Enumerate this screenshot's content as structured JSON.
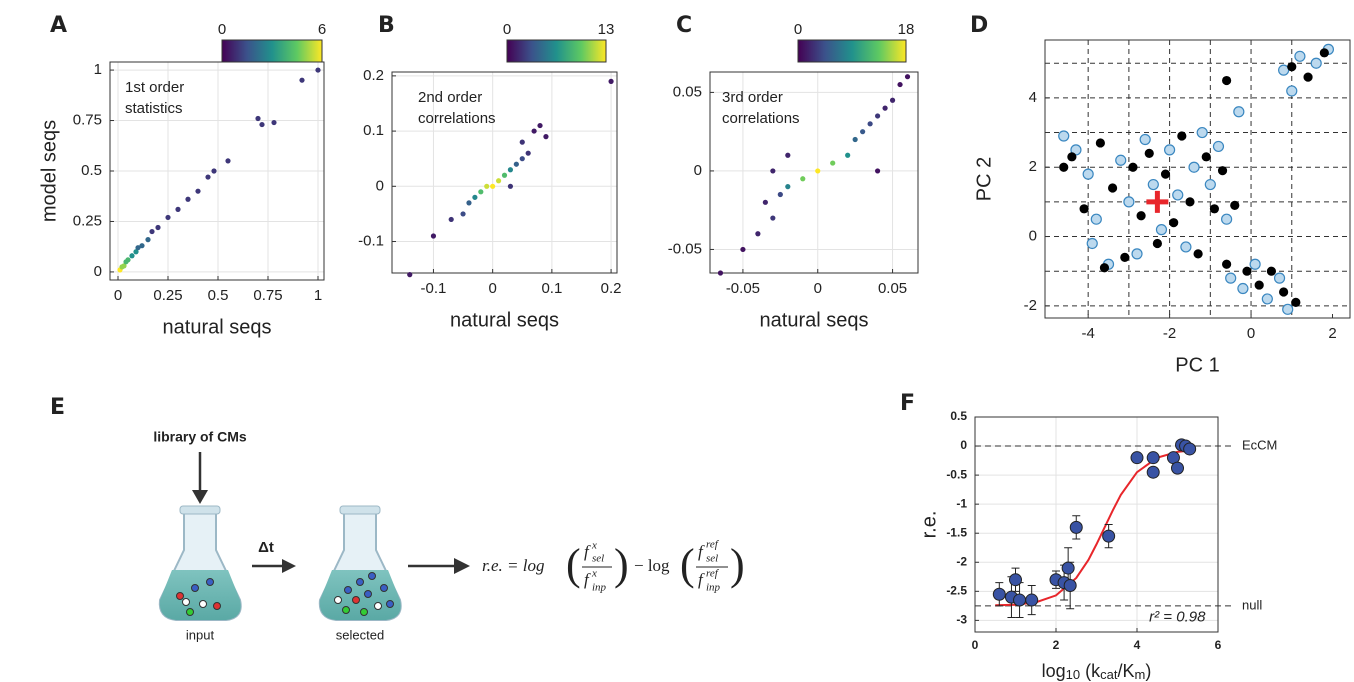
{
  "chart_data": [
    {
      "type": "density",
      "label": "A",
      "annotation": [
        "1st order",
        "statistics"
      ],
      "xlabel": "natural seqs",
      "ylabel": "model seqs",
      "xlim": [
        -0.04,
        1.03
      ],
      "ylim": [
        -0.04,
        1.04
      ],
      "xticks": [
        0,
        0.25,
        0.5,
        0.75,
        1
      ],
      "yticks": [
        0,
        0.25,
        0.5,
        0.75,
        1
      ],
      "grid": true,
      "colorbar": {
        "clim": [
          0,
          6
        ],
        "ticks": [
          0,
          6
        ]
      },
      "x": [
        0.01,
        0.02,
        0.03,
        0.04,
        0.05,
        0.07,
        0.09,
        0.1,
        0.12,
        0.15,
        0.17,
        0.2,
        0.25,
        0.3,
        0.35,
        0.4,
        0.45,
        0.48,
        0.55,
        0.7,
        0.72,
        0.78,
        0.92,
        1.0
      ],
      "y": [
        0.01,
        0.025,
        0.03,
        0.05,
        0.06,
        0.08,
        0.1,
        0.12,
        0.13,
        0.16,
        0.2,
        0.22,
        0.27,
        0.31,
        0.36,
        0.4,
        0.47,
        0.5,
        0.55,
        0.76,
        0.73,
        0.74,
        0.95,
        1.0
      ],
      "c": [
        6,
        5,
        5,
        4,
        4,
        3,
        3,
        2,
        2,
        2,
        1,
        1,
        1,
        1,
        1,
        1,
        1,
        1,
        1,
        1,
        1,
        1,
        1,
        1
      ]
    },
    {
      "type": "density",
      "label": "B",
      "annotation": [
        "2nd order",
        "correlations"
      ],
      "xlabel": "natural seqs",
      "xlim": [
        -0.17,
        0.21
      ],
      "ylim": [
        -0.157,
        0.207
      ],
      "xticks": [
        -0.1,
        0,
        0.1,
        0.2
      ],
      "yticks": [
        -0.1,
        0,
        0.1,
        0.2
      ],
      "grid": true,
      "colorbar": {
        "clim": [
          0,
          13
        ],
        "ticks": [
          0,
          13
        ]
      },
      "x": [
        -0.14,
        -0.1,
        -0.07,
        -0.05,
        -0.04,
        -0.03,
        -0.02,
        -0.01,
        0,
        0.01,
        0.02,
        0.03,
        0.04,
        0.05,
        0.05,
        0.06,
        0.07,
        0.08,
        0.03,
        0.09,
        0.2
      ],
      "y": [
        -0.16,
        -0.09,
        -0.06,
        -0.05,
        -0.03,
        -0.02,
        -0.01,
        0,
        0,
        0.01,
        0.02,
        0.03,
        0.04,
        0.05,
        0.08,
        0.06,
        0.1,
        0.11,
        0,
        0.09,
        0.19
      ],
      "c": [
        1,
        1,
        2,
        3,
        4,
        6,
        9,
        12,
        13,
        12,
        9,
        6,
        4,
        3,
        2,
        2,
        1,
        1,
        2,
        1,
        1
      ]
    },
    {
      "type": "density",
      "label": "C",
      "annotation": [
        "3rd order",
        "correlations"
      ],
      "xlabel": "natural seqs",
      "xlim": [
        -0.072,
        0.067
      ],
      "ylim": [
        -0.065,
        0.063
      ],
      "xticks": [
        -0.05,
        0,
        0.05
      ],
      "yticks": [
        -0.05,
        0,
        0.05
      ],
      "grid": true,
      "colorbar": {
        "clim": [
          0,
          18
        ],
        "ticks": [
          0,
          18
        ]
      },
      "x": [
        -0.065,
        -0.05,
        -0.04,
        -0.035,
        -0.03,
        -0.025,
        -0.02,
        -0.03,
        -0.01,
        0,
        0.01,
        0.02,
        0.025,
        0.03,
        0.035,
        0.04,
        0.045,
        0.05,
        0.055,
        0.06,
        0.04,
        -0.02
      ],
      "y": [
        -0.065,
        -0.05,
        -0.04,
        -0.02,
        -0.03,
        -0.015,
        -0.01,
        0,
        -0.005,
        0,
        0.005,
        0.01,
        0.02,
        0.025,
        0.03,
        0.035,
        0.04,
        0.045,
        0.055,
        0.06,
        0,
        0.01
      ],
      "c": [
        1,
        1,
        2,
        2,
        3,
        4,
        8,
        2,
        14,
        18,
        14,
        9,
        6,
        5,
        4,
        3,
        2,
        2,
        1,
        1,
        1,
        2
      ]
    },
    {
      "type": "scatter",
      "label": "D",
      "xlabel": "PC 1",
      "ylabel": "PC 2",
      "xlim": [
        -5.06,
        2.43
      ],
      "ylim": [
        -2.35,
        5.67
      ],
      "xticks": [
        -4,
        -2,
        0,
        2
      ],
      "yticks": [
        -2,
        0,
        2,
        4
      ],
      "grid": false,
      "xgrid": [
        -4,
        -3,
        -2,
        -1,
        0,
        1
      ],
      "ygrid": [
        -2,
        -1,
        0,
        1,
        2,
        3,
        4,
        5
      ],
      "series": [
        {
          "color": "#bcd9ee",
          "edgecolor": "#3a87c0",
          "x": [
            -4.6,
            -4.3,
            -4.0,
            -3.8,
            -3.5,
            -3.2,
            -3.0,
            -2.8,
            -2.6,
            -2.4,
            -2.2,
            -2.0,
            -1.8,
            -1.6,
            -1.4,
            -1.2,
            -1.0,
            -0.8,
            -0.6,
            -0.5,
            -0.2,
            0.1,
            0.4,
            0.7,
            0.9,
            0.8,
            1.2,
            1.6,
            1.9,
            -0.3,
            1.0,
            -3.9
          ],
          "y": [
            2.9,
            2.5,
            1.8,
            0.5,
            -0.8,
            2.2,
            1.0,
            -0.5,
            2.8,
            1.5,
            0.2,
            2.5,
            1.2,
            -0.3,
            2.0,
            3.0,
            1.5,
            2.6,
            0.5,
            -1.2,
            -1.5,
            -0.8,
            -1.8,
            -1.2,
            -2.1,
            4.8,
            5.2,
            5.0,
            5.4,
            3.6,
            4.2,
            -0.2
          ]
        },
        {
          "color": "#000000",
          "edgecolor": "#000000",
          "x": [
            -4.4,
            -4.1,
            -3.7,
            -3.4,
            -3.1,
            -2.9,
            -2.7,
            -2.5,
            -2.3,
            -2.1,
            -1.9,
            -1.7,
            -1.5,
            -1.3,
            -1.1,
            -0.9,
            -0.7,
            -0.6,
            -0.4,
            -0.1,
            0.2,
            0.5,
            0.8,
            1.1,
            1.0,
            1.4,
            1.8,
            -0.6,
            -4.6,
            -3.6
          ],
          "y": [
            2.3,
            0.8,
            2.7,
            1.4,
            -0.6,
            2.0,
            0.6,
            2.4,
            -0.2,
            1.8,
            0.4,
            2.9,
            1.0,
            -0.5,
            2.3,
            0.8,
            1.9,
            -0.8,
            0.9,
            -1.0,
            -1.4,
            -1.0,
            -1.6,
            -1.9,
            4.9,
            4.6,
            5.3,
            4.5,
            2.0,
            -0.9
          ]
        }
      ],
      "marker": {
        "x": -2.3,
        "y": 1,
        "color": "#e8262b"
      }
    },
    {
      "type": "errorbar",
      "label": "F",
      "xlabel_parts": [
        "log",
        "10",
        " (k",
        "cat",
        "/K",
        "m",
        ")"
      ],
      "ylabel": "r.e.",
      "xlim": [
        0,
        6
      ],
      "ylim": [
        -3.2,
        0.5
      ],
      "xticks": [
        0,
        2,
        4,
        6
      ],
      "yticks": [
        0.5,
        0,
        -0.5,
        -1,
        -1.5,
        -2,
        -2.5,
        -3
      ],
      "grid": true,
      "color": "#3953a4",
      "x": [
        0.6,
        0.9,
        1.0,
        1.1,
        1.4,
        2.0,
        2.2,
        2.3,
        2.35,
        2.5,
        3.3,
        4.0,
        4.4,
        4.4,
        4.9,
        5.0,
        5.1,
        5.2,
        5.3
      ],
      "values": [
        -2.55,
        -2.6,
        -2.3,
        -2.65,
        -2.65,
        -2.3,
        -2.35,
        -2.1,
        -2.4,
        -1.4,
        -1.55,
        -0.2,
        -0.2,
        -0.45,
        -0.2,
        -0.38,
        0.02,
        0.0,
        -0.05
      ],
      "errors": [
        0.2,
        0.35,
        0.2,
        0.3,
        0.25,
        0.15,
        0.3,
        0.35,
        0.4,
        0.2,
        0.2,
        0.05,
        0.05,
        0.05,
        0.05,
        0.05,
        0.05,
        0.05,
        0.05
      ],
      "fit": {
        "color": "#e8262b",
        "x": [
          0.5,
          1,
          1.5,
          2,
          2.5,
          2.8,
          3,
          3.2,
          3.4,
          3.6,
          4,
          4.5,
          5,
          5.4
        ],
        "y": [
          -2.74,
          -2.73,
          -2.69,
          -2.57,
          -2.27,
          -1.96,
          -1.69,
          -1.4,
          -1.11,
          -0.84,
          -0.45,
          -0.2,
          -0.1,
          -0.07
        ]
      },
      "reference_lines": [
        {
          "y": 0,
          "label": "EcCM"
        },
        {
          "y": -2.75,
          "label": "null"
        }
      ],
      "annotation": {
        "x": 4.3,
        "y": -2.95,
        "text": "r² = 0.98"
      }
    }
  ],
  "diagram": {
    "label": "E",
    "library": "library of CMs",
    "step": "Δt",
    "input": "input",
    "selected": "selected",
    "equation": {
      "lhs": "r.e. = log",
      "f": "f",
      "x": "x",
      "ref": "ref",
      "sel": "sel",
      "inp": "inp",
      "minus": "− log"
    }
  }
}
